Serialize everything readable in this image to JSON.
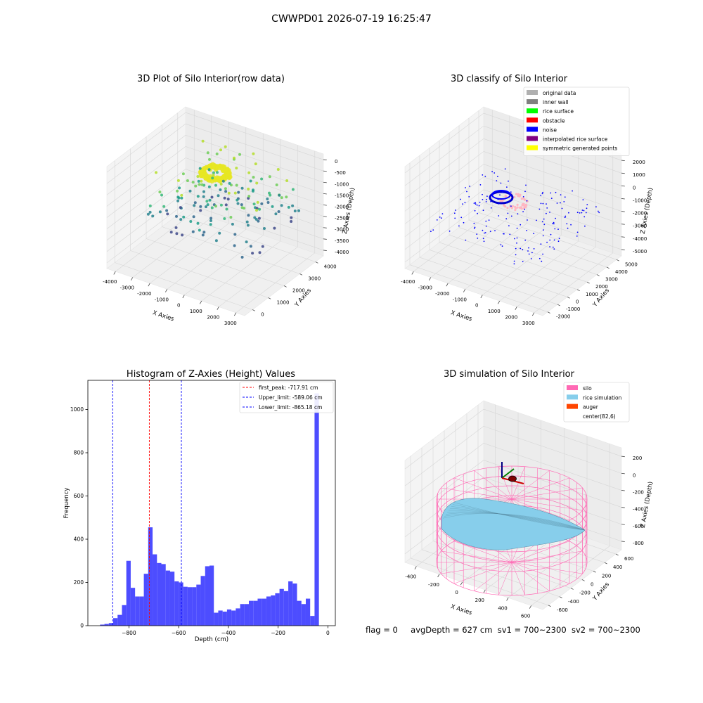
{
  "suptitle": "CWWPD01 2026-07-19 16:25:47",
  "footer": {
    "flag": "flag = 0",
    "avg_depth": "avgDepth = 627 cm",
    "sv1": "sv1 = 700~2300",
    "sv2": "sv2 = 700~2300"
  },
  "colors": {
    "hist_bar": "#4d4dff",
    "first_peak": "#ff0000",
    "limit_lines": "#0000ff",
    "silo_wire": "#ff69b4",
    "rice_surface": "#87ceeb",
    "auger": "#ff4500",
    "pane": "#f2f2f2",
    "grid": "#d9d9d9"
  },
  "chart_data": [
    {
      "type": "scatter3d",
      "title": "3D Plot of Silo Interior(row data)",
      "xlabel": "X Axies",
      "ylabel": "Y Axies",
      "zlabel": "Z Axies (Depth)",
      "xticks": [
        "-4000",
        "-3000",
        "-2000",
        "-1000",
        "0",
        "1000",
        "2000",
        "3000"
      ],
      "yticks": [
        "0",
        "1000",
        "2000",
        "3000",
        "4000"
      ],
      "zticks": [
        "0",
        "-500",
        "-1000",
        "-1500",
        "-2000",
        "-2500",
        "-3000",
        "-3500",
        "-4000"
      ],
      "xlim": [
        -4400,
        3600
      ],
      "ylim": [
        -600,
        4400
      ],
      "zlim": [
        -4300,
        300
      ],
      "colormap": "viridis"
    },
    {
      "type": "scatter3d",
      "title": "3D classify of Silo Interior",
      "xlabel": "X Axies",
      "ylabel": "Y Axies",
      "zlabel": "Z Axies (Depth)",
      "xticks": [
        "-4000",
        "-3000",
        "-2000",
        "-1000",
        "0",
        "1000",
        "2000",
        "3000"
      ],
      "yticks": [
        "-2000",
        "-1000",
        "0",
        "1000",
        "2000",
        "3000",
        "4000",
        "5000"
      ],
      "zticks": [
        "2000",
        "1000",
        "0",
        "-1000",
        "-2000",
        "-3000",
        "-4000",
        "-5000"
      ],
      "xlim": [
        -4400,
        3600
      ],
      "ylim": [
        -2200,
        5400
      ],
      "zlim": [
        -5600,
        2400
      ],
      "legend_position": "top-right",
      "legend": [
        {
          "label": "original data",
          "color": "#b0b0b0"
        },
        {
          "label": "inner wall",
          "color": "#808080"
        },
        {
          "label": "rice surface",
          "color": "#00ff00"
        },
        {
          "label": "obstacle",
          "color": "#ff0000"
        },
        {
          "label": "noise",
          "color": "#0000ff"
        },
        {
          "label": "interpolated rice surface",
          "color": "#800080"
        },
        {
          "label": "symmetric generated points",
          "color": "#ffff00"
        }
      ]
    },
    {
      "type": "bar",
      "title": "Histogram of Z-Axies (Height) Values",
      "xlabel": "Depth (cm)",
      "ylabel": "Frequency",
      "xlim": [
        -965,
        30
      ],
      "ylim": [
        0,
        1135
      ],
      "xticks": [
        -800,
        -600,
        -400,
        -200,
        0
      ],
      "yticks": [
        0,
        200,
        400,
        600,
        800,
        1000
      ],
      "bin_width": 17.6,
      "bin_start": -916,
      "values": [
        5,
        8,
        12,
        35,
        50,
        95,
        300,
        175,
        135,
        135,
        240,
        455,
        330,
        290,
        285,
        255,
        250,
        205,
        200,
        180,
        178,
        178,
        190,
        230,
        275,
        278,
        60,
        70,
        65,
        75,
        70,
        80,
        100,
        100,
        115,
        115,
        125,
        125,
        135,
        140,
        150,
        170,
        160,
        205,
        195,
        115,
        100,
        125,
        45,
        1075
      ],
      "vlines": [
        {
          "label": "first_peak: -717.91 cm",
          "value": -717.91,
          "color": "#ff0000"
        },
        {
          "label": "Upper_limit: -589.06 cm",
          "value": -589.06,
          "color": "#0000ff"
        },
        {
          "label": "Lower_limit: -865.18 cm",
          "value": -865.18,
          "color": "#0000ff"
        }
      ],
      "legend_position": "top-right"
    },
    {
      "type": "surface3d",
      "title": "3D simulation of Silo Interior",
      "xlabel": "X Axies",
      "ylabel": "Y Axies",
      "zlabel": "Z Axies (Depth)",
      "xticks": [
        "-400",
        "-200",
        "0",
        "200",
        "400",
        "600"
      ],
      "yticks": [
        "-600",
        "-400",
        "-200",
        "0",
        "200",
        "400",
        "600"
      ],
      "zticks": [
        "200",
        "0",
        "-200",
        "-400",
        "-600",
        "-800"
      ],
      "xlim": [
        -560,
        720
      ],
      "ylim": [
        -650,
        650
      ],
      "zlim": [
        -950,
        330
      ],
      "legend_position": "top-right",
      "legend": [
        {
          "label": "silo",
          "color": "#ff69b4"
        },
        {
          "label": "rice simulation",
          "color": "#87ceeb"
        },
        {
          "label": "auger",
          "color": "#ff4500"
        },
        {
          "label": "center(82,6)",
          "color": ""
        }
      ]
    }
  ]
}
